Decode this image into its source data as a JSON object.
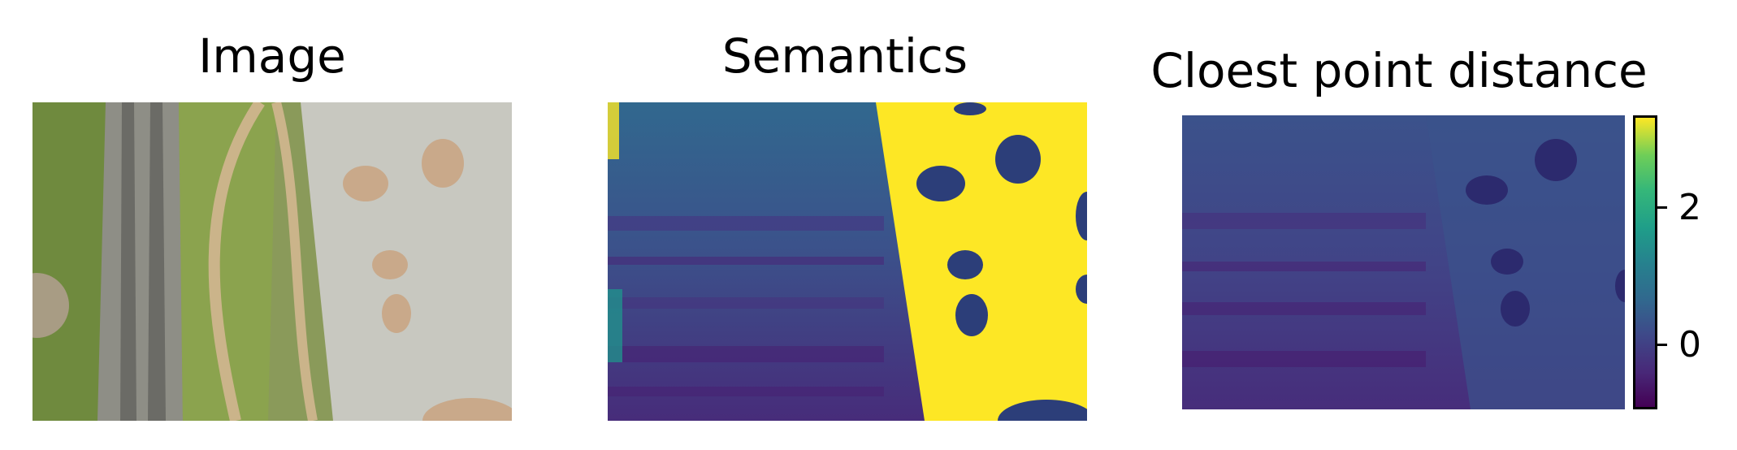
{
  "panels": {
    "image": {
      "title": "Image"
    },
    "semantics": {
      "title": "Semantics"
    },
    "distance": {
      "title": "Cloest point distance"
    }
  },
  "colorbar": {
    "colormap": "viridis",
    "ticks": [
      "2",
      "0"
    ]
  },
  "colors": {
    "viridis_dark": "#440154",
    "viridis_mid": "#31688e",
    "viridis_teal": "#21918c",
    "viridis_yellow": "#fde725"
  }
}
